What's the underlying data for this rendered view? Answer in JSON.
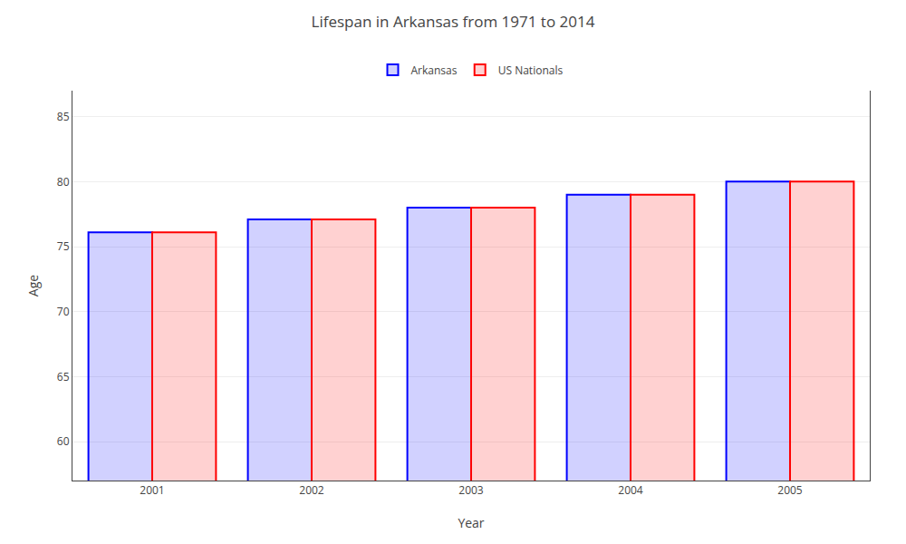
{
  "chart_data": {
    "type": "bar",
    "title": "Lifespan in Arkansas from 1971 to 2014",
    "x_label": "Year",
    "y_label": "Age",
    "categories": [
      "2001",
      "2002",
      "2003",
      "2004",
      "2005"
    ],
    "series": [
      {
        "name": "Arkansas",
        "color": "#0000ff",
        "values": [
          76.1,
          77.1,
          78.0,
          79.0,
          80.0
        ]
      },
      {
        "name": "US Nationals",
        "color": "#ff0000",
        "values": [
          76.1,
          77.1,
          78.0,
          79.0,
          80.0
        ]
      }
    ],
    "ylim": [
      57,
      87
    ],
    "yticks": [
      60,
      65,
      70,
      75,
      80,
      85
    ],
    "grid": true,
    "legend": "top"
  }
}
